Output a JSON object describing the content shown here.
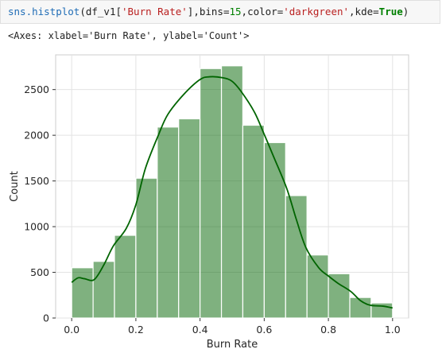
{
  "code_cell": {
    "fn": "sns.histplot",
    "open": "(df_v1[",
    "col": "'Burn Rate'",
    "mid1": "],bins=",
    "bins": "15",
    "mid2": ",color=",
    "color": "'darkgreen'",
    "mid3": ",kde=",
    "kde": "True",
    "close": ")"
  },
  "output_text": "<Axes: xlabel='Burn Rate', ylabel='Count'>",
  "chart_data": {
    "type": "bar",
    "title": "",
    "xlabel": "Burn Rate",
    "ylabel": "Count",
    "bar_color": "#006400",
    "bar_alpha": 0.5,
    "kde_color": "#006400",
    "bin_edges": [
      0.0,
      0.0667,
      0.1333,
      0.2,
      0.2667,
      0.3333,
      0.4,
      0.4667,
      0.5333,
      0.6,
      0.6667,
      0.7333,
      0.8,
      0.8667,
      0.9333,
      1.0
    ],
    "values": [
      550,
      620,
      905,
      1530,
      2090,
      2180,
      2730,
      2760,
      2110,
      1920,
      1340,
      690,
      485,
      225,
      165
    ],
    "xlim": [
      -0.05,
      1.05
    ],
    "ylim": [
      0,
      2880
    ],
    "xticks": [
      0.0,
      0.2,
      0.4,
      0.6,
      0.8,
      1.0
    ],
    "xtick_labels": [
      "0.0",
      "0.2",
      "0.4",
      "0.6",
      "0.8",
      "1.0"
    ],
    "yticks": [
      0,
      500,
      1000,
      1500,
      2000,
      2500
    ],
    "ytick_labels": [
      "0",
      "500",
      "1000",
      "1500",
      "2000",
      "2500"
    ],
    "grid": true,
    "kde": {
      "x": [
        0.0,
        0.02,
        0.04,
        0.07,
        0.1,
        0.13,
        0.17,
        0.2,
        0.23,
        0.27,
        0.3,
        0.35,
        0.4,
        0.43,
        0.47,
        0.5,
        0.53,
        0.57,
        0.6,
        0.63,
        0.67,
        0.7,
        0.73,
        0.77,
        0.8,
        0.83,
        0.87,
        0.9,
        0.93,
        0.97,
        1.0
      ],
      "y": [
        390,
        440,
        430,
        420,
        580,
        790,
        980,
        1240,
        1640,
        2000,
        2230,
        2450,
        2610,
        2640,
        2630,
        2590,
        2470,
        2250,
        2010,
        1760,
        1420,
        1080,
        770,
        550,
        460,
        380,
        290,
        190,
        140,
        130,
        110
      ]
    }
  }
}
